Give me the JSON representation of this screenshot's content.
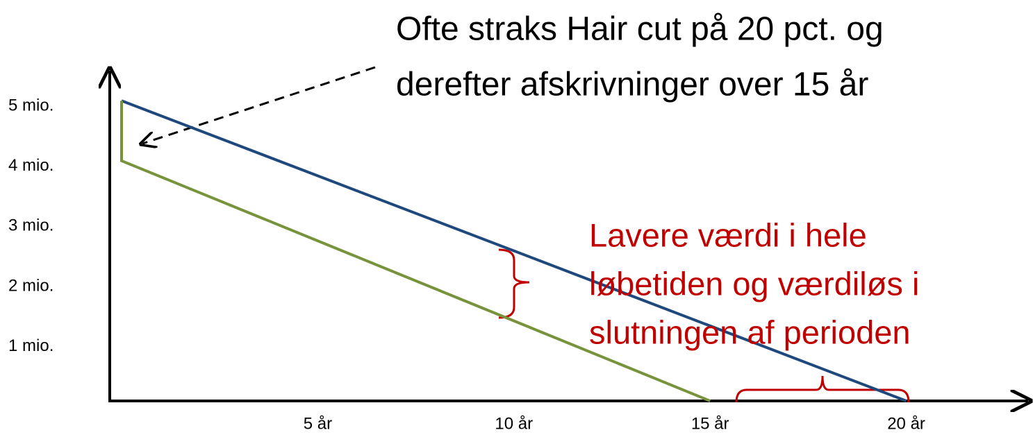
{
  "chart_data": {
    "type": "line",
    "series": [
      {
        "color": "#1f497d",
        "x": [
          0,
          20
        ],
        "values": [
          5,
          0
        ]
      },
      {
        "color": "#77933c",
        "x": [
          0,
          0,
          15
        ],
        "values": [
          5,
          4,
          0
        ]
      }
    ],
    "xlim": [
      0,
      23
    ],
    "ylim": [
      0,
      5.5
    ],
    "xticks": [
      {
        "value": 5,
        "label": "5 år"
      },
      {
        "value": 10,
        "label": "10 år"
      },
      {
        "value": 15,
        "label": "15 år"
      },
      {
        "value": 20,
        "label": "20 år"
      }
    ],
    "yticks": [
      {
        "value": 1,
        "label": "1 mio."
      },
      {
        "value": 2,
        "label": "2 mio."
      },
      {
        "value": 3,
        "label": "3 mio."
      },
      {
        "value": 4,
        "label": "4 mio."
      },
      {
        "value": 5,
        "label": "5 mio."
      }
    ],
    "grid": false,
    "annotations": [
      {
        "lines": [
          "Ofte straks Hair cut på 20 pct. og",
          "derefter afskrivninger over 15 år"
        ],
        "color": "#000000"
      },
      {
        "lines": [
          "Lavere værdi i hele",
          "løbetiden og værdiløs i",
          "slutningen af perioden"
        ],
        "color": "#c00000"
      }
    ]
  }
}
